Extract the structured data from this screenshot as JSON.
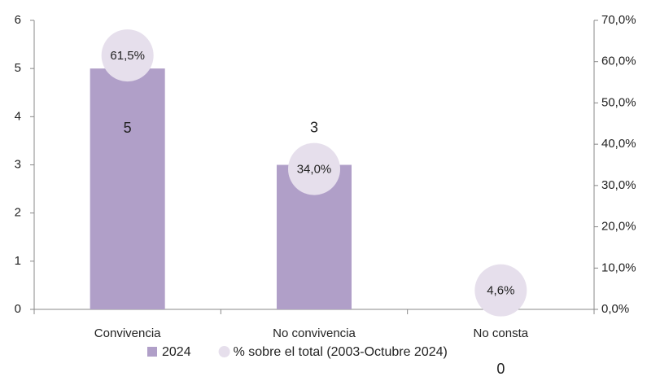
{
  "chart_data": {
    "type": "bar",
    "categories": [
      "Convivencia",
      "No convivencia",
      "No consta"
    ],
    "series": [
      {
        "name": "2024",
        "type": "bar",
        "color": "#b09fc8",
        "values": [
          5,
          3,
          0
        ]
      },
      {
        "name": "% sobre el total (2003-Octubre 2024)",
        "type": "scatter",
        "color": "#e6dfec",
        "axis": "y2",
        "values": [
          61.5,
          34.0,
          4.6
        ],
        "value_labels": [
          "61,5%",
          "34,0%",
          "4,6%"
        ]
      }
    ],
    "ylim": [
      0,
      6
    ],
    "yticks": [
      0,
      1,
      2,
      3,
      4,
      5,
      6
    ],
    "y2lim": [
      0,
      70
    ],
    "y2ticks": [
      {
        "value": 0,
        "label": "0,0%"
      },
      {
        "value": 10,
        "label": "10,0%"
      },
      {
        "value": 20,
        "label": "20,0%"
      },
      {
        "value": 30,
        "label": "30,0%"
      },
      {
        "value": 40,
        "label": "40,0%"
      },
      {
        "value": 50,
        "label": "50,0%"
      },
      {
        "value": 60,
        "label": "60,0%"
      },
      {
        "value": 70,
        "label": "70,0%"
      }
    ],
    "legend": "bottom"
  }
}
